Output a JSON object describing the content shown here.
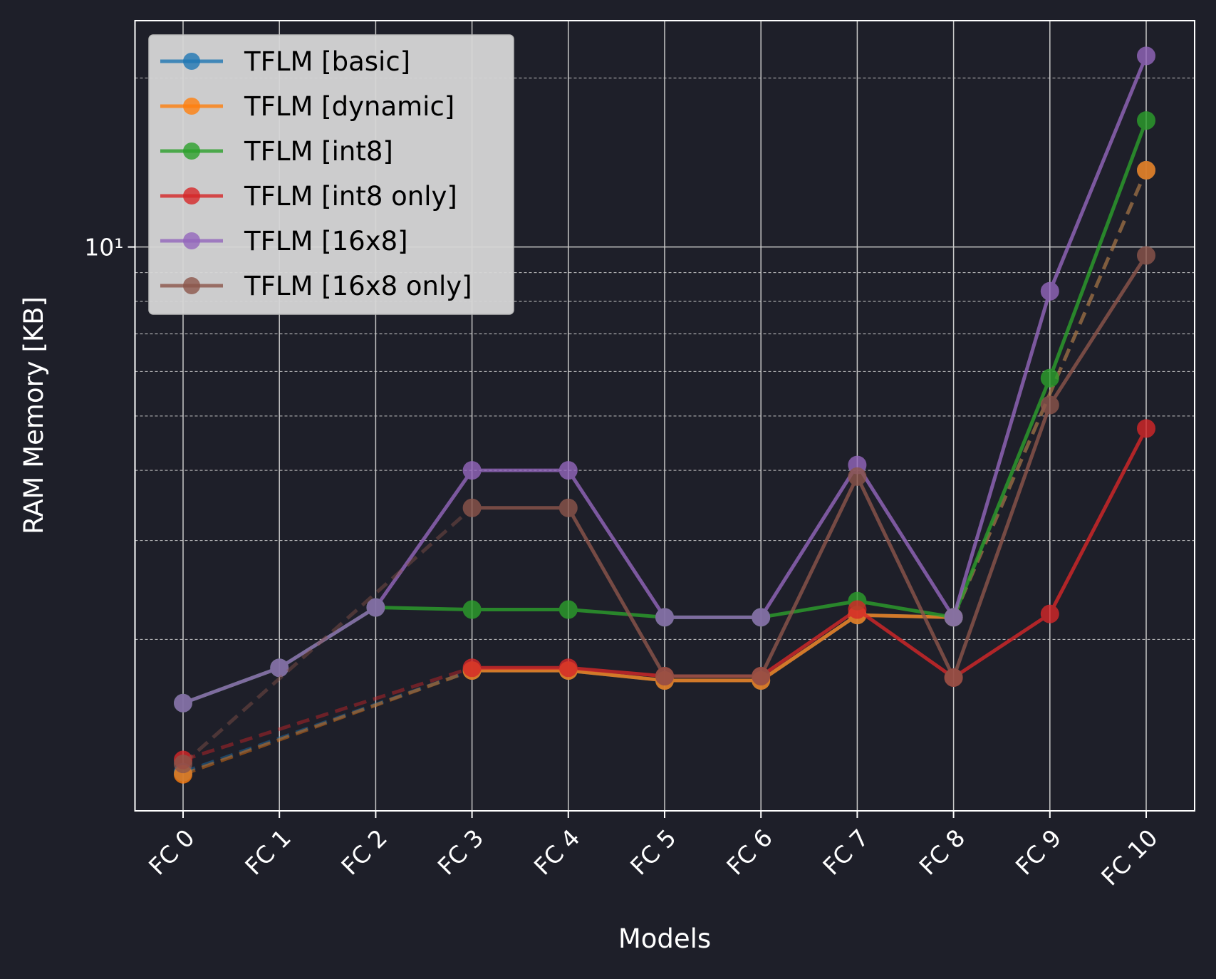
{
  "chart_data": {
    "type": "line",
    "title": "",
    "xlabel": "Models",
    "ylabel": "RAM Memory [KB]",
    "yscale": "log",
    "ylim": [
      0.99,
      25.3
    ],
    "ytick_labels": [
      {
        "value": 10,
        "label": "10¹"
      }
    ],
    "categories": [
      "FC 0",
      "FC 1",
      "FC 2",
      "FC 3",
      "FC 4",
      "FC 5",
      "FC 6",
      "FC 7",
      "FC 8",
      "FC 9",
      "FC 10"
    ],
    "grid": true,
    "legend_position": "top-left",
    "series": [
      {
        "name": "TFLM [basic]",
        "color": "#1f77b4",
        "values": [
          1.16,
          null,
          null,
          1.76,
          1.76,
          1.69,
          1.69,
          2.21,
          2.19,
          null,
          13.7
        ]
      },
      {
        "name": "TFLM [dynamic]",
        "color": "#ff7f0e",
        "values": [
          1.15,
          null,
          null,
          1.76,
          1.76,
          1.69,
          1.69,
          2.21,
          2.19,
          null,
          13.7
        ]
      },
      {
        "name": "TFLM [int8]",
        "color": "#2ca02c",
        "values": [
          1.54,
          1.78,
          2.28,
          2.26,
          2.26,
          2.19,
          2.19,
          2.34,
          2.19,
          5.84,
          16.8
        ]
      },
      {
        "name": "TFLM [int8 only]",
        "color": "#d62728",
        "values": [
          1.22,
          null,
          null,
          1.78,
          1.78,
          1.72,
          1.72,
          2.26,
          1.71,
          2.22,
          4.75
        ]
      },
      {
        "name": "TFLM [16x8]",
        "color": "#9467bd",
        "values": [
          1.54,
          1.78,
          2.28,
          4.0,
          4.0,
          2.19,
          2.19,
          4.09,
          2.19,
          8.34,
          21.9
        ]
      },
      {
        "name": "TFLM [16x8 only]",
        "color": "#8c564b",
        "values": [
          1.2,
          null,
          null,
          3.43,
          3.43,
          1.72,
          1.72,
          3.9,
          1.71,
          5.23,
          9.66
        ]
      }
    ]
  }
}
